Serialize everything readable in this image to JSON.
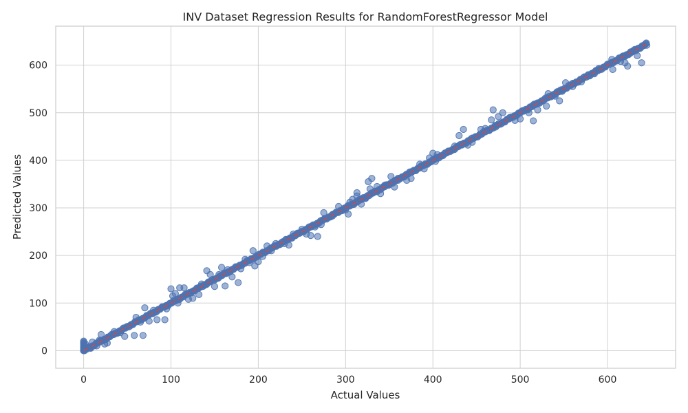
{
  "chart_data": {
    "type": "scatter",
    "title": "INV Dataset Regression Results for RandomForestRegressor Model",
    "xlabel": "Actual Values",
    "ylabel": "Predicted Values",
    "xlim": [
      -32,
      678
    ],
    "ylim": [
      -37,
      682
    ],
    "xticks": [
      0,
      100,
      200,
      300,
      400,
      500,
      600
    ],
    "yticks": [
      0,
      100,
      200,
      300,
      400,
      500,
      600
    ],
    "grid": true,
    "legend": "none",
    "point_color": "#4c72b0",
    "reference_line": {
      "style": "dashed",
      "color": "#c44e52",
      "from": [
        0,
        0
      ],
      "to": [
        645,
        645
      ]
    },
    "near_line_segments": [
      {
        "x_from": 0,
        "x_to": 645,
        "spacing": 1.2,
        "wobble": 2.2
      }
    ],
    "zero_cluster": [
      [
        0,
        0
      ],
      [
        0,
        2
      ],
      [
        0,
        4
      ],
      [
        0,
        6
      ],
      [
        0,
        8
      ],
      [
        0,
        10
      ],
      [
        0,
        12
      ],
      [
        0,
        15
      ],
      [
        0,
        18
      ],
      [
        0,
        20
      ],
      [
        1,
        3
      ],
      [
        1,
        7
      ],
      [
        2,
        14
      ],
      [
        0,
        1
      ],
      [
        1,
        0
      ],
      [
        2,
        5
      ],
      [
        1,
        11
      ],
      [
        0,
        16
      ]
    ],
    "outliers": [
      [
        8,
        5
      ],
      [
        10,
        18
      ],
      [
        15,
        10
      ],
      [
        18,
        22
      ],
      [
        20,
        34
      ],
      [
        24,
        14
      ],
      [
        27,
        16
      ],
      [
        28,
        28
      ],
      [
        35,
        40
      ],
      [
        42,
        38
      ],
      [
        47,
        30
      ],
      [
        55,
        55
      ],
      [
        58,
        32
      ],
      [
        60,
        70
      ],
      [
        65,
        60
      ],
      [
        68,
        32
      ],
      [
        70,
        90
      ],
      [
        75,
        62
      ],
      [
        80,
        85
      ],
      [
        84,
        65
      ],
      [
        90,
        92
      ],
      [
        93,
        65
      ],
      [
        95,
        88
      ],
      [
        100,
        130
      ],
      [
        102,
        115
      ],
      [
        105,
        120
      ],
      [
        108,
        100
      ],
      [
        110,
        132
      ],
      [
        115,
        132
      ],
      [
        120,
        108
      ],
      [
        125,
        110
      ],
      [
        132,
        118
      ],
      [
        135,
        140
      ],
      [
        141,
        168
      ],
      [
        145,
        160
      ],
      [
        150,
        135
      ],
      [
        155,
        160
      ],
      [
        158,
        175
      ],
      [
        162,
        136
      ],
      [
        165,
        170
      ],
      [
        170,
        155
      ],
      [
        177,
        143
      ],
      [
        180,
        172
      ],
      [
        185,
        192
      ],
      [
        190,
        185
      ],
      [
        194,
        210
      ],
      [
        196,
        178
      ],
      [
        200,
        187
      ],
      [
        205,
        198
      ],
      [
        210,
        220
      ],
      [
        215,
        210
      ],
      [
        220,
        225
      ],
      [
        230,
        225
      ],
      [
        235,
        222
      ],
      [
        240,
        245
      ],
      [
        250,
        255
      ],
      [
        255,
        245
      ],
      [
        260,
        242
      ],
      [
        265,
        260
      ],
      [
        268,
        240
      ],
      [
        272,
        265
      ],
      [
        275,
        290
      ],
      [
        285,
        283
      ],
      [
        292,
        303
      ],
      [
        300,
        296
      ],
      [
        303,
        287
      ],
      [
        305,
        312
      ],
      [
        308,
        318
      ],
      [
        313,
        325
      ],
      [
        313,
        332
      ],
      [
        318,
        308
      ],
      [
        323,
        320
      ],
      [
        326,
        355
      ],
      [
        328,
        340
      ],
      [
        330,
        362
      ],
      [
        336,
        345
      ],
      [
        340,
        330
      ],
      [
        345,
        348
      ],
      [
        352,
        366
      ],
      [
        356,
        344
      ],
      [
        360,
        358
      ],
      [
        370,
        358
      ],
      [
        375,
        362
      ],
      [
        385,
        392
      ],
      [
        390,
        382
      ],
      [
        396,
        405
      ],
      [
        400,
        415
      ],
      [
        403,
        398
      ],
      [
        405,
        412
      ],
      [
        425,
        430
      ],
      [
        430,
        452
      ],
      [
        435,
        465
      ],
      [
        440,
        432
      ],
      [
        445,
        438
      ],
      [
        455,
        465
      ],
      [
        460,
        467
      ],
      [
        467,
        485
      ],
      [
        469,
        506
      ],
      [
        472,
        470
      ],
      [
        475,
        492
      ],
      [
        480,
        500
      ],
      [
        488,
        490
      ],
      [
        494,
        484
      ],
      [
        500,
        487
      ],
      [
        510,
        500
      ],
      [
        515,
        483
      ],
      [
        520,
        506
      ],
      [
        530,
        514
      ],
      [
        532,
        540
      ],
      [
        540,
        535
      ],
      [
        545,
        525
      ],
      [
        548,
        545
      ],
      [
        552,
        563
      ],
      [
        560,
        555
      ],
      [
        570,
        565
      ],
      [
        578,
        580
      ],
      [
        585,
        582
      ],
      [
        590,
        593
      ],
      [
        605,
        612
      ],
      [
        606,
        591
      ],
      [
        615,
        608
      ],
      [
        618,
        618
      ],
      [
        620,
        605
      ],
      [
        623,
        598
      ],
      [
        626,
        625
      ],
      [
        632,
        630
      ],
      [
        634,
        620
      ],
      [
        639,
        605
      ],
      [
        644,
        645
      ],
      [
        645,
        642
      ]
    ]
  }
}
